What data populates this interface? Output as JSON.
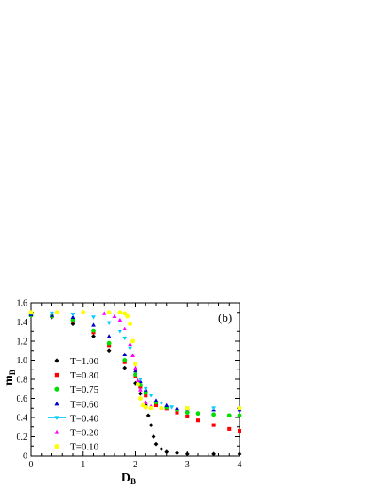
{
  "chart_data": {
    "type": "scatter",
    "panel_label": "(b)",
    "xlabel": "D",
    "xlabel_sub": "B",
    "ylabel": "m",
    "ylabel_sub": "B",
    "xlim": [
      0,
      4
    ],
    "ylim": [
      0,
      1.6
    ],
    "xticks": [
      0,
      1,
      2,
      3,
      4
    ],
    "yticks": [
      0,
      0.2,
      0.4,
      0.6,
      0.8,
      1.0,
      1.2,
      1.4,
      1.6
    ],
    "xtick_labels": [
      "0",
      "1",
      "2",
      "3",
      "4"
    ],
    "ytick_labels": [
      "0",
      "0.2",
      "0.4",
      "0.6",
      "0.8",
      "1.0",
      "1.2",
      "1.4",
      "1.6"
    ],
    "grid": false,
    "legend_position": "left-bottom",
    "series": [
      {
        "name": "T=1.00",
        "color": "#000000",
        "marker": "diamond",
        "x": [
          0,
          0.4,
          0.8,
          1.2,
          1.5,
          1.8,
          2.0,
          2.1,
          2.2,
          2.25,
          2.3,
          2.35,
          2.4,
          2.5,
          2.6,
          2.8,
          3.0,
          3.5,
          4.0
        ],
        "y": [
          1.47,
          1.45,
          1.38,
          1.25,
          1.1,
          0.92,
          0.76,
          0.65,
          0.53,
          0.42,
          0.32,
          0.2,
          0.12,
          0.07,
          0.04,
          0.03,
          0.02,
          0.02,
          0.02
        ]
      },
      {
        "name": "T=0.80",
        "color": "#ff0000",
        "marker": "square",
        "x": [
          0,
          0.4,
          0.8,
          1.2,
          1.5,
          1.8,
          2.0,
          2.1,
          2.2,
          2.4,
          2.6,
          2.8,
          3.0,
          3.2,
          3.5,
          3.8,
          4.0
        ],
        "y": [
          1.47,
          1.46,
          1.41,
          1.29,
          1.15,
          0.98,
          0.83,
          0.72,
          0.63,
          0.53,
          0.49,
          0.45,
          0.41,
          0.37,
          0.32,
          0.28,
          0.26
        ]
      },
      {
        "name": "T=0.75",
        "color": "#00dd00",
        "marker": "circle",
        "x": [
          0,
          0.4,
          0.8,
          1.2,
          1.5,
          1.8,
          2.0,
          2.1,
          2.2,
          2.4,
          2.6,
          2.8,
          3.0,
          3.2,
          3.5,
          3.8,
          4.0
        ],
        "y": [
          1.47,
          1.46,
          1.42,
          1.31,
          1.18,
          1.0,
          0.85,
          0.74,
          0.66,
          0.56,
          0.51,
          0.48,
          0.45,
          0.44,
          0.43,
          0.42,
          0.42
        ]
      },
      {
        "name": "T=0.60",
        "color": "#0000cc",
        "marker": "triangle-up",
        "x": [
          0,
          0.4,
          0.8,
          1.2,
          1.5,
          1.8,
          2.0,
          2.1,
          2.2,
          2.4,
          2.6,
          2.8,
          3.0,
          3.5,
          4.0
        ],
        "y": [
          1.48,
          1.47,
          1.45,
          1.37,
          1.25,
          1.06,
          0.89,
          0.78,
          0.69,
          0.58,
          0.53,
          0.5,
          0.49,
          0.48,
          0.48
        ]
      },
      {
        "name": "T=0.40",
        "color": "#00ccff",
        "marker": "triangle-down",
        "x": [
          0,
          0.4,
          0.8,
          1.2,
          1.5,
          1.7,
          1.8,
          1.9,
          2.0,
          2.1,
          2.2,
          2.3,
          2.5,
          2.7,
          3.0,
          3.5,
          4.0
        ],
        "y": [
          1.49,
          1.49,
          1.48,
          1.45,
          1.39,
          1.3,
          1.23,
          1.12,
          0.95,
          0.8,
          0.7,
          0.63,
          0.55,
          0.51,
          0.5,
          0.5,
          0.5
        ]
      },
      {
        "name": "T=0.20",
        "color": "#ff00ff",
        "marker": "triangle-up",
        "x": [
          0,
          0.5,
          1.0,
          1.4,
          1.6,
          1.7,
          1.8,
          1.9,
          1.95,
          2.0,
          2.05,
          2.1,
          2.2,
          2.3,
          2.5,
          3.0,
          4.0
        ],
        "y": [
          1.5,
          1.5,
          1.5,
          1.49,
          1.46,
          1.42,
          1.33,
          1.17,
          1.05,
          0.92,
          0.79,
          0.69,
          0.56,
          0.52,
          0.5,
          0.5,
          0.5
        ]
      },
      {
        "name": "T=0.10",
        "color": "#ffff00",
        "marker": "circle",
        "x": [
          0,
          0.5,
          1.0,
          1.5,
          1.7,
          1.8,
          1.85,
          1.9,
          1.95,
          2.0,
          2.05,
          2.1,
          2.15,
          2.2,
          2.3,
          2.5,
          3.0,
          4.0
        ],
        "y": [
          1.5,
          1.5,
          1.5,
          1.5,
          1.5,
          1.49,
          1.46,
          1.38,
          1.2,
          0.96,
          0.75,
          0.6,
          0.53,
          0.51,
          0.5,
          0.5,
          0.5,
          0.5
        ]
      }
    ]
  }
}
